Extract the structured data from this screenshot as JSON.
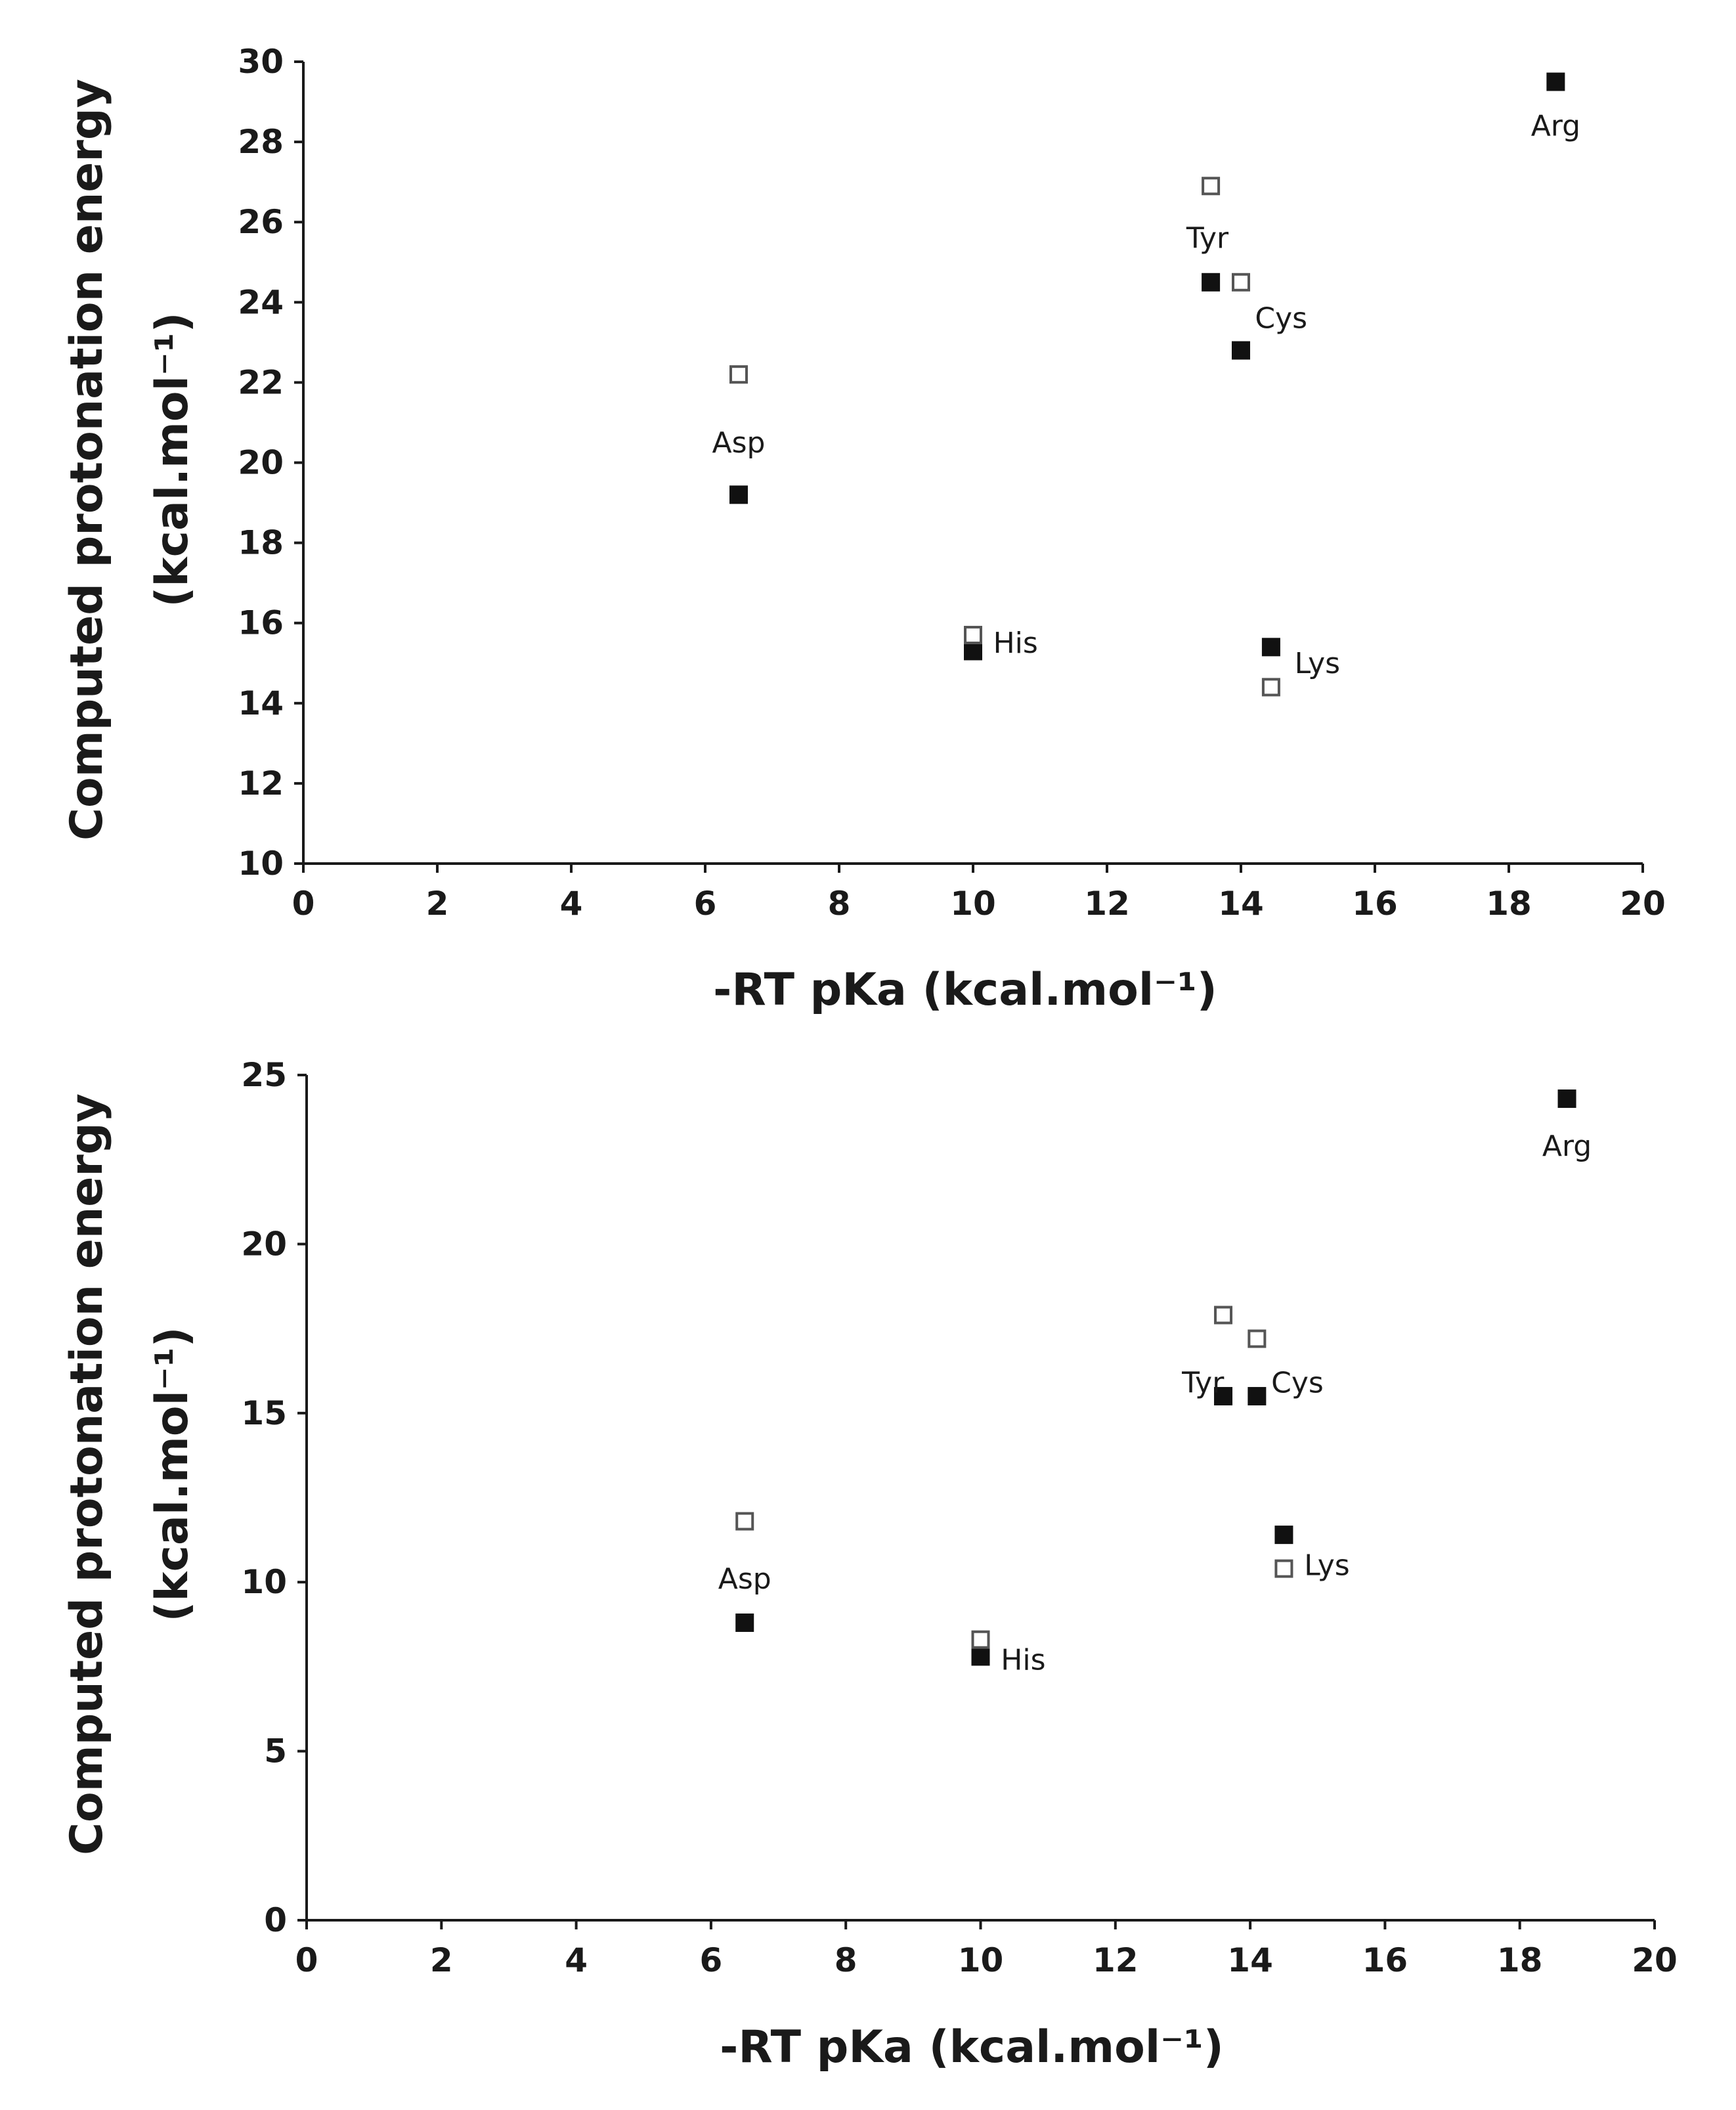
{
  "chart_data": [
    {
      "type": "scatter",
      "title": "",
      "xlabel": "-RT pKa (kcal.mol⁻¹)",
      "ylabel": "Computed protonation energy",
      "ylabel2": "(kcal.mol⁻¹)",
      "xlim": [
        0,
        20
      ],
      "ylim": [
        10,
        30
      ],
      "xticks": [
        0,
        2,
        4,
        6,
        8,
        10,
        12,
        14,
        16,
        18,
        20
      ],
      "yticks": [
        10,
        12,
        14,
        16,
        18,
        20,
        22,
        24,
        26,
        28,
        30
      ],
      "series": [
        {
          "name": "filled",
          "marker": "filled-square",
          "points": [
            [
              6.5,
              19.2
            ],
            [
              10.0,
              15.3
            ],
            [
              13.55,
              24.5
            ],
            [
              14.0,
              22.8
            ],
            [
              14.45,
              15.4
            ],
            [
              18.7,
              29.5
            ]
          ]
        },
        {
          "name": "open",
          "marker": "open-square",
          "points": [
            [
              6.5,
              22.2
            ],
            [
              10.0,
              15.7
            ],
            [
              13.55,
              26.9
            ],
            [
              14.0,
              24.5
            ],
            [
              14.45,
              14.4
            ]
          ]
        }
      ],
      "annotations": [
        {
          "text": "Asp",
          "x": 6.5,
          "y": 20.5,
          "anchor": "middle"
        },
        {
          "text": "His",
          "x": 10.3,
          "y": 15.5,
          "anchor": "start"
        },
        {
          "text": "Tyr",
          "x": 13.5,
          "y": 25.6,
          "anchor": "middle"
        },
        {
          "text": "Cys",
          "x": 14.6,
          "y": 23.6,
          "anchor": "middle"
        },
        {
          "text": "Lys",
          "x": 14.8,
          "y": 15.0,
          "anchor": "start"
        },
        {
          "text": "Arg",
          "x": 18.7,
          "y": 28.4,
          "anchor": "middle"
        }
      ]
    },
    {
      "type": "scatter",
      "title": "",
      "xlabel": "-RT pKa (kcal.mol⁻¹)",
      "ylabel": "Computed protonation energy",
      "ylabel2": "(kcal.mol⁻¹)",
      "xlim": [
        0,
        20
      ],
      "ylim": [
        0,
        25
      ],
      "xticks": [
        0,
        2,
        4,
        6,
        8,
        10,
        12,
        14,
        16,
        18,
        20
      ],
      "yticks": [
        0,
        5,
        10,
        15,
        20,
        25
      ],
      "series": [
        {
          "name": "filled",
          "marker": "filled-square",
          "points": [
            [
              6.5,
              8.8
            ],
            [
              10.0,
              7.8
            ],
            [
              13.6,
              15.5
            ],
            [
              14.1,
              15.5
            ],
            [
              14.5,
              11.4
            ],
            [
              18.7,
              24.3
            ]
          ]
        },
        {
          "name": "open",
          "marker": "open-square",
          "points": [
            [
              6.5,
              11.8
            ],
            [
              10.0,
              8.3
            ],
            [
              13.6,
              17.9
            ],
            [
              14.1,
              17.2
            ],
            [
              14.5,
              10.4
            ]
          ]
        }
      ],
      "annotations": [
        {
          "text": "Asp",
          "x": 6.5,
          "y": 10.1,
          "anchor": "middle"
        },
        {
          "text": "His",
          "x": 10.3,
          "y": 7.7,
          "anchor": "start"
        },
        {
          "text": "Tyr",
          "x": 13.3,
          "y": 15.9,
          "anchor": "middle"
        },
        {
          "text": "Cys",
          "x": 14.7,
          "y": 15.9,
          "anchor": "middle"
        },
        {
          "text": "Lys",
          "x": 14.8,
          "y": 10.5,
          "anchor": "start"
        },
        {
          "text": "Arg",
          "x": 18.7,
          "y": 22.9,
          "anchor": "middle"
        }
      ]
    }
  ]
}
